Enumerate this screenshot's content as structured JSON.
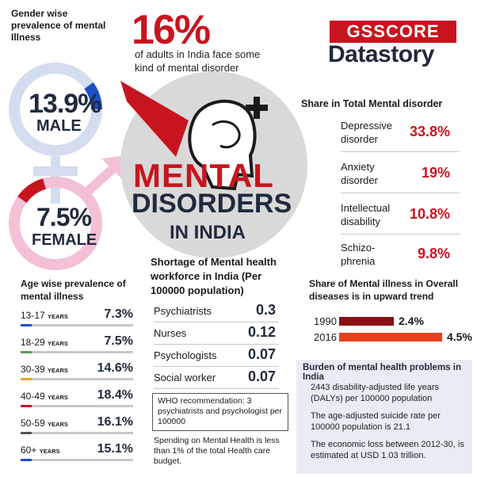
{
  "gender": {
    "title": "Gender wise prevalence of mental Illness",
    "male": {
      "value": "13.9%",
      "label": "MALE"
    },
    "female": {
      "value": "7.5%",
      "label": "FEMALE"
    }
  },
  "headline": {
    "percent": "16%",
    "subtitle": "of adults in India face some kind of mental disorder"
  },
  "logo": {
    "top": "GSSCORE",
    "bottom": "Datastory"
  },
  "main_title": {
    "line1": "MENTAL",
    "line2": "DISORDERS",
    "line3": "IN INDIA"
  },
  "share": {
    "title": "Share in Total Mental disorder",
    "items": [
      {
        "label": "Depressive disorder",
        "value": "33.8%"
      },
      {
        "label": "Anxiety disorder",
        "value": "19%"
      },
      {
        "label": "Intellectual disability",
        "value": "10.8%"
      },
      {
        "label": "Schizo-phrenia",
        "value": "9.8%"
      }
    ]
  },
  "shortage": {
    "title": "Shortage of Mental health workforce in India (Per 100000 population)",
    "items": [
      {
        "label": "Psychiatrists",
        "value": "0.3"
      },
      {
        "label": "Nurses",
        "value": "0.12"
      },
      {
        "label": "Psychologists",
        "value": "0.07"
      },
      {
        "label": "Social worker",
        "value": "0.07"
      }
    ],
    "who": "WHO recommendation: 3 psychiatrists and psychologist per 100000",
    "spending": "Spending on Mental Health is less than 1% of the total Health care budget."
  },
  "trend": {
    "title": "Share of Mental illness in Overall diseases is in upward trend",
    "items": [
      {
        "year": "1990",
        "value": "2.4%",
        "share": 2.4,
        "color": "#8b0f14"
      },
      {
        "year": "2016",
        "value": "4.5%",
        "share": 4.5,
        "color": "#e8401c"
      }
    ]
  },
  "burden": {
    "title": "Burden of mental health problems in India",
    "points": [
      "2443 disability-adjusted life years (DALYs) per 100000 population",
      "The age-adjusted suicide rate per 100000 population is 21.1",
      "The economic loss between 2012-30, is estimated at USD 1.03 trillion."
    ]
  },
  "age": {
    "title": "Age wise prevalence of mental illness",
    "units": "YEARS",
    "items": [
      {
        "range": "13-17",
        "value": "7.3%",
        "color": "#1f4fc8"
      },
      {
        "range": "18-29",
        "value": "7.5%",
        "color": "#5a9a5a"
      },
      {
        "range": "30-39",
        "value": "14.6%",
        "color": "#f0a020"
      },
      {
        "range": "40-49",
        "value": "18.4%",
        "color": "#c8141e"
      },
      {
        "range": "50-59",
        "value": "16.1%",
        "color": "#555555"
      },
      {
        "range": "60+",
        "value": "15.1%",
        "color": "#1f4fc8"
      }
    ]
  },
  "colors": {
    "red": "#c8141e",
    "navy": "#1f2a3c",
    "blue": "#1f4fc8",
    "pink": "#f4c0d8",
    "lightblue": "#d4dcf0"
  }
}
